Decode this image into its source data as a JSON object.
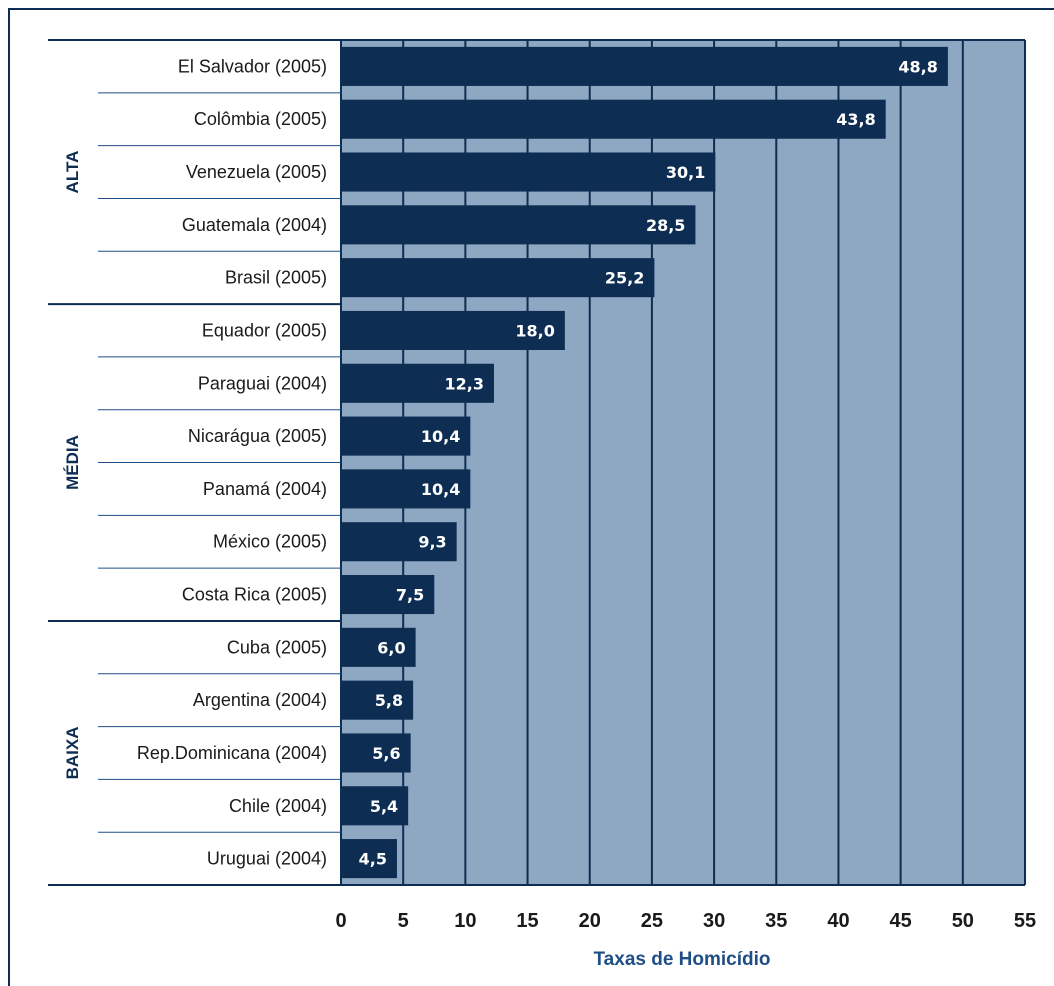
{
  "chart_data": {
    "type": "bar",
    "orientation": "horizontal",
    "categories": [
      "El Salvador (2005)",
      "Colômbia (2005)",
      "Venezuela (2005)",
      "Guatemala (2004)",
      "Brasil (2005)",
      "Equador (2005)",
      "Paraguai (2004)",
      "Nicarágua (2005)",
      "Panamá (2004)",
      "México (2005)",
      "Costa Rica (2005)",
      "Cuba (2005)",
      "Argentina (2004)",
      "Rep.Dominicana (2004)",
      "Chile (2004)",
      "Uruguai (2004)"
    ],
    "values": [
      48.8,
      43.8,
      30.1,
      28.5,
      25.2,
      18.0,
      12.3,
      10.4,
      10.4,
      9.3,
      7.5,
      6.0,
      5.8,
      5.6,
      5.4,
      4.5
    ],
    "value_labels": [
      "48,8",
      "43,8",
      "30,1",
      "28,5",
      "25,2",
      "18,0",
      "12,3",
      "10,4",
      "10,4",
      "9,3",
      "7,5",
      "6,0",
      "5,8",
      "5,6",
      "5,4",
      "4,5"
    ],
    "groups": [
      {
        "label": "ALTA",
        "count": 5
      },
      {
        "label": "MÉDIA",
        "count": 6
      },
      {
        "label": "BAIXA",
        "count": 5
      }
    ],
    "xlabel": "Taxas de Homicídio",
    "ylabel": "",
    "xlim": [
      0,
      55
    ],
    "xticks": [
      0,
      5,
      10,
      15,
      20,
      25,
      30,
      35,
      40,
      45,
      50,
      55
    ],
    "grid": true,
    "colors": {
      "bar": "#0d2d52",
      "plot_background": "#8ea7c2",
      "gridline": "#0d2d52",
      "axis_title": "#1f4e86"
    }
  }
}
